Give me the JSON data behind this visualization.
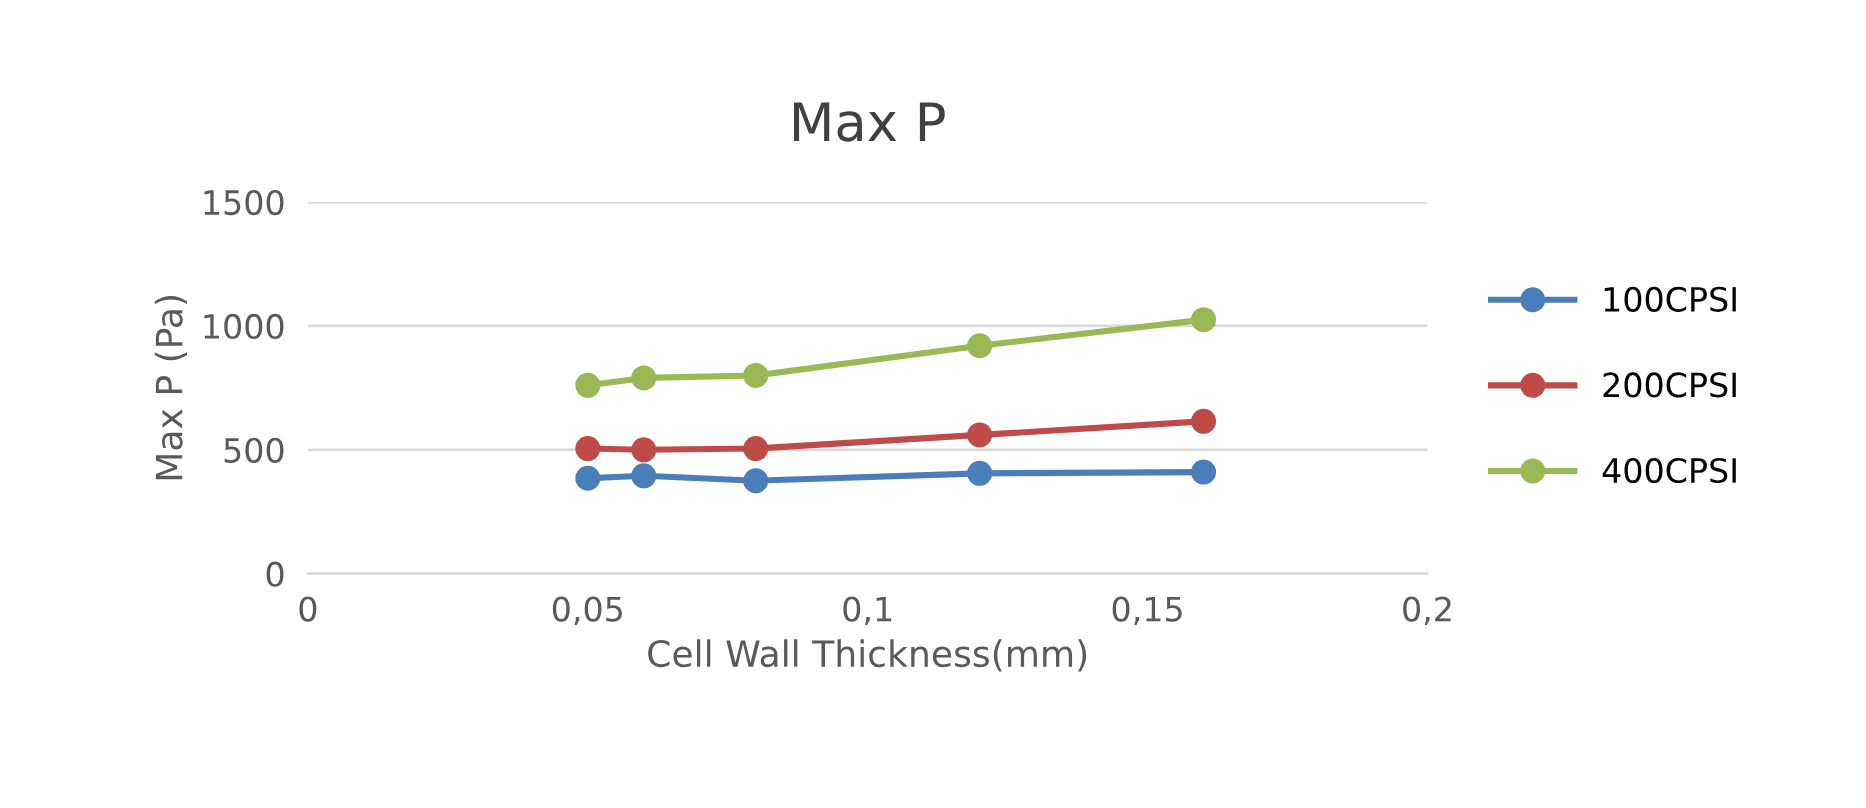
{
  "chart_data": {
    "type": "line",
    "title": "Max P",
    "xlabel": "Cell Wall Thickness(mm)",
    "ylabel": "Max P (Pa)",
    "x": [
      0.05,
      0.06,
      0.08,
      0.12,
      0.16
    ],
    "series": [
      {
        "name": "100CPSI",
        "color": "#4a7ebb",
        "values": [
          385,
          395,
          375,
          405,
          410
        ]
      },
      {
        "name": "200CPSI",
        "color": "#be4b48",
        "values": [
          505,
          500,
          505,
          560,
          615
        ]
      },
      {
        "name": "400CPSI",
        "color": "#98b954",
        "values": [
          760,
          790,
          800,
          920,
          1025
        ]
      }
    ],
    "xlim": [
      0,
      0.2
    ],
    "xticks": [
      0,
      {
        "value": 0.05,
        "label": "0,05"
      },
      {
        "value": 0.1,
        "label": "0,1"
      },
      {
        "value": 0.15,
        "label": "0,15"
      },
      {
        "value": 0.2,
        "label": "0,2"
      }
    ],
    "ylim": [
      0,
      1500
    ],
    "yticks": [
      0,
      500,
      1000,
      1500
    ],
    "grid": "y",
    "legend": "right",
    "marker": "circle",
    "line_style": "solid"
  }
}
